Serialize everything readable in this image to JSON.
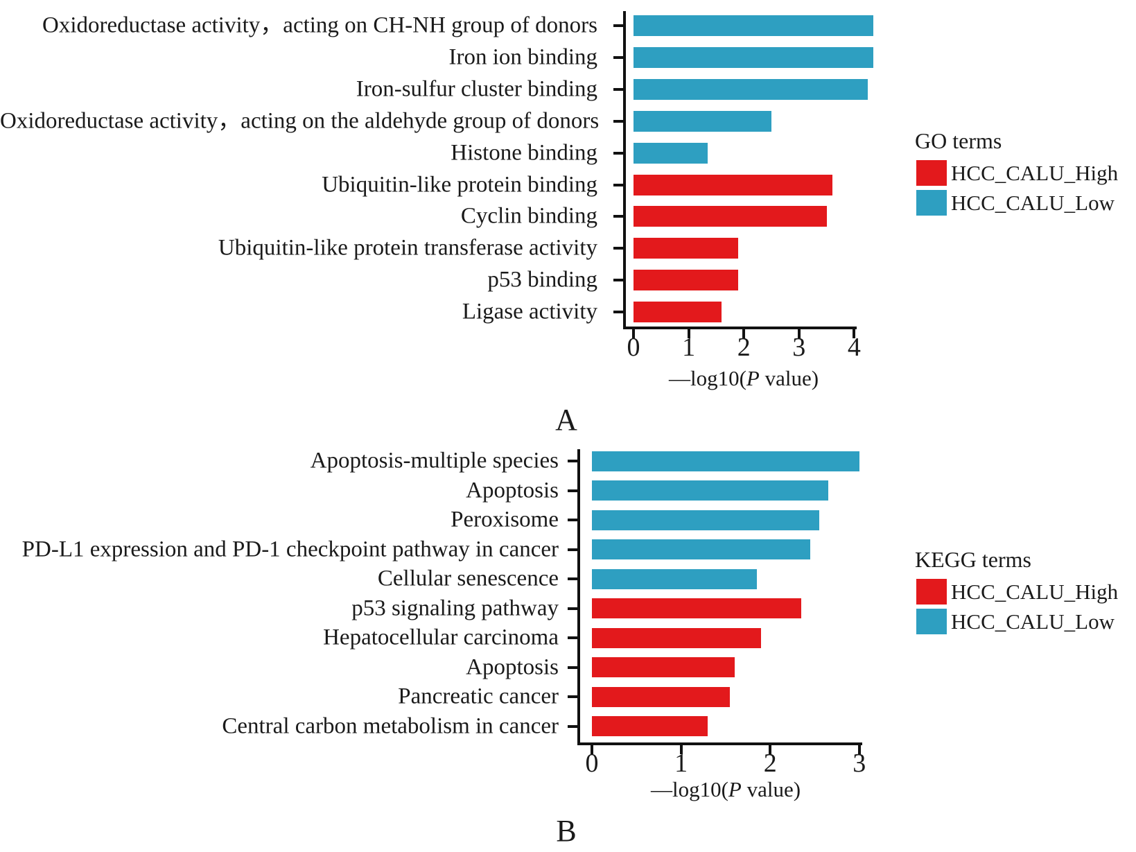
{
  "axis": {
    "xlabel_pre": "—log10(",
    "xlabel_p": "P",
    "xlabel_post": " value)"
  },
  "colors": {
    "high": "#E3191C",
    "low": "#2E9FC1",
    "axis_line": "#111111",
    "text": "#1A1A1A",
    "background": "#FFFFFF"
  },
  "legends": [
    {
      "title": "GO terms",
      "items": [
        {
          "label": "HCC_CALU_High",
          "color": "#E3191C"
        },
        {
          "label": "HCC_CALU_Low",
          "color": "#2E9FC1"
        }
      ]
    },
    {
      "title": "KEGG terms",
      "items": [
        {
          "label": "HCC_CALU_High",
          "color": "#E3191C"
        },
        {
          "label": "HCC_CALU_Low",
          "color": "#2E9FC1"
        }
      ]
    }
  ],
  "chart_data": [
    {
      "type": "bar",
      "orientation": "horizontal",
      "panel_label": "A",
      "legend_title": "GO terms",
      "xlabel": "—log10(P value)",
      "xlabel_pre": "—log10(",
      "xlabel_p": "P",
      "xlabel_post": " value)",
      "xlim": [
        0,
        4.4
      ],
      "xticks": [
        0,
        1,
        2,
        3,
        4
      ],
      "grid": false,
      "legend_position": "right",
      "series_colors": {
        "HCC_CALU_High": "#E3191C",
        "HCC_CALU_Low": "#2E9FC1"
      },
      "bars": [
        {
          "category": "Oxidoreductase activity，acting on CH-NH group of donors",
          "value": 4.35,
          "series": "HCC_CALU_Low"
        },
        {
          "category": "Iron ion binding",
          "value": 4.35,
          "series": "HCC_CALU_Low"
        },
        {
          "category": "Iron-sulfur cluster binding",
          "value": 4.25,
          "series": "HCC_CALU_Low"
        },
        {
          "category": "Oxidoreductase activity，acting on the aldehyde group of donors",
          "value": 2.5,
          "series": "HCC_CALU_Low"
        },
        {
          "category": "Histone binding",
          "value": 1.35,
          "series": "HCC_CALU_Low"
        },
        {
          "category": "Ubiquitin-like protein binding",
          "value": 3.6,
          "series": "HCC_CALU_High"
        },
        {
          "category": "Cyclin binding",
          "value": 3.5,
          "series": "HCC_CALU_High"
        },
        {
          "category": "Ubiquitin-like protein transferase activity",
          "value": 1.9,
          "series": "HCC_CALU_High"
        },
        {
          "category": "p53 binding",
          "value": 1.9,
          "series": "HCC_CALU_High"
        },
        {
          "category": "Ligase activity",
          "value": 1.6,
          "series": "HCC_CALU_High"
        }
      ]
    },
    {
      "type": "bar",
      "orientation": "horizontal",
      "panel_label": "B",
      "legend_title": "KEGG terms",
      "xlabel": "—log10(P value)",
      "xlabel_pre": "—log10(",
      "xlabel_p": "P",
      "xlabel_post": " value)",
      "xlim": [
        0,
        3.1
      ],
      "xticks": [
        0,
        1,
        2,
        3
      ],
      "grid": false,
      "legend_position": "right",
      "series_colors": {
        "HCC_CALU_High": "#E3191C",
        "HCC_CALU_Low": "#2E9FC1"
      },
      "bars": [
        {
          "category": "Apoptosis-multiple species",
          "value": 3.0,
          "series": "HCC_CALU_Low"
        },
        {
          "category": "Apoptosis",
          "value": 2.65,
          "series": "HCC_CALU_Low"
        },
        {
          "category": "Peroxisome",
          "value": 2.55,
          "series": "HCC_CALU_Low"
        },
        {
          "category": "PD-L1 expression and PD-1 checkpoint pathway in cancer",
          "value": 2.45,
          "series": "HCC_CALU_Low"
        },
        {
          "category": "Cellular senescence",
          "value": 1.85,
          "series": "HCC_CALU_Low"
        },
        {
          "category": "p53 signaling pathway",
          "value": 2.35,
          "series": "HCC_CALU_High"
        },
        {
          "category": "Hepatocellular carcinoma",
          "value": 1.9,
          "series": "HCC_CALU_High"
        },
        {
          "category": "Apoptosis",
          "value": 1.6,
          "series": "HCC_CALU_High"
        },
        {
          "category": "Pancreatic cancer",
          "value": 1.55,
          "series": "HCC_CALU_High"
        },
        {
          "category": "Central carbon metabolism in cancer",
          "value": 1.3,
          "series": "HCC_CALU_High"
        }
      ]
    }
  ]
}
